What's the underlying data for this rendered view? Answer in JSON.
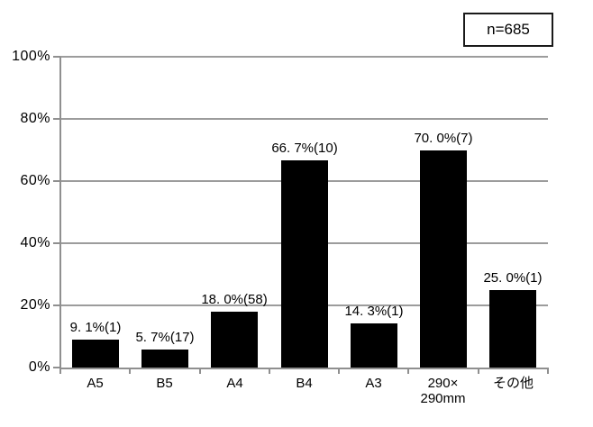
{
  "annotation": {
    "n_label": "n=685"
  },
  "chart_data": {
    "type": "bar",
    "title": "",
    "categories": [
      "A5",
      "B5",
      "A4",
      "B4",
      "A3",
      "290×290mm",
      "その他"
    ],
    "category_lines": [
      [
        "A5"
      ],
      [
        "B5"
      ],
      [
        "A4"
      ],
      [
        "B4"
      ],
      [
        "A3"
      ],
      [
        "290×",
        "290mm"
      ],
      [
        "その他"
      ]
    ],
    "values": [
      9.1,
      5.7,
      18.0,
      66.7,
      14.3,
      70.0,
      25.0
    ],
    "counts": [
      1,
      17,
      58,
      10,
      1,
      7,
      1
    ],
    "data_labels": [
      "9. 1%(1)",
      "5. 7%(17)",
      "18. 0%(58)",
      "66. 7%(10)",
      "14. 3%(1)",
      "70. 0%(7)",
      "25. 0%(1)"
    ],
    "y_axis": {
      "ticks": [
        "100%",
        "80%",
        "60%",
        "40%",
        "20%",
        "0%"
      ],
      "min": 0,
      "max": 100,
      "step": 20
    },
    "sample_size_label": "n=685",
    "grid": true,
    "legend_position": "none",
    "xlabel": "",
    "ylabel": "",
    "colors": {
      "bar": "#000000",
      "gridline": "#9c9c9c",
      "axis": "#8f8f8f",
      "text": "#000000",
      "background": "#ffffff",
      "box_border": "#1a1a1a"
    }
  }
}
